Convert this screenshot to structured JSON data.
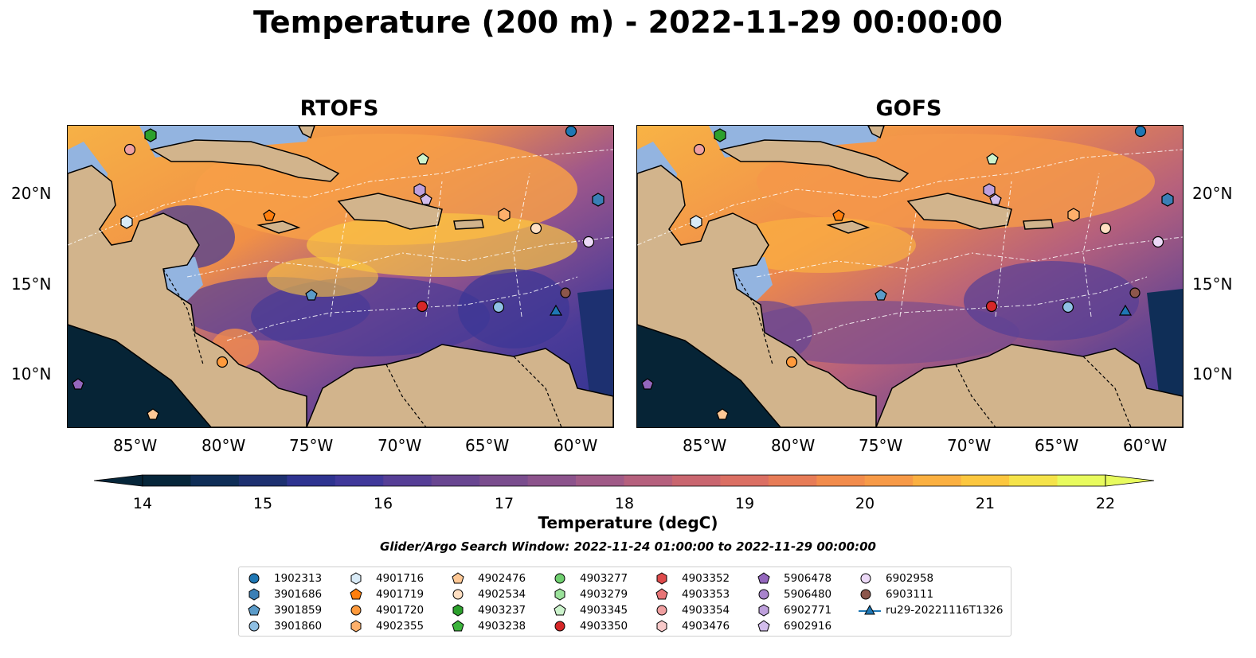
{
  "title": "Temperature (200 m) - 2022-11-29 00:00:00",
  "panels": [
    {
      "title": "RTOFS"
    },
    {
      "title": "GOFS"
    }
  ],
  "lat_labels": [
    "20°N",
    "15°N",
    "10°N"
  ],
  "lon_labels": [
    "85°W",
    "80°W",
    "75°W",
    "70°W",
    "65°W",
    "60°W"
  ],
  "colorbar": {
    "label": "Temperature (degC)",
    "ticks": [
      "14",
      "15",
      "16",
      "17",
      "18",
      "19",
      "20",
      "21",
      "22"
    ],
    "colors": [
      "#06263a",
      "#0f2e57",
      "#1d3070",
      "#2e3390",
      "#40389a",
      "#563e96",
      "#694691",
      "#7a4d8e",
      "#8c538c",
      "#a05a87",
      "#b5607d",
      "#c9666f",
      "#db6f63",
      "#e77c57",
      "#f28c4c",
      "#f79a47",
      "#fbb041",
      "#fcc73f",
      "#f5e34a",
      "#e8fb5e"
    ],
    "extend": "both"
  },
  "search_window": "Glider/Argo Search Window: 2022-11-24 01:00:00 to 2022-11-29 00:00:00",
  "legend": [
    {
      "label": "1902313",
      "marker": "circle",
      "color": "#1f77b4"
    },
    {
      "label": "3901686",
      "marker": "hexagon",
      "color": "#3a7fb6"
    },
    {
      "label": "3901859",
      "marker": "pentagon",
      "color": "#5b9bc9"
    },
    {
      "label": "3901860",
      "marker": "circle",
      "color": "#8fc0e4"
    },
    {
      "label": "4901716",
      "marker": "hexagon",
      "color": "#d9ebf7"
    },
    {
      "label": "4901719",
      "marker": "pentagon",
      "color": "#ff7f0e"
    },
    {
      "label": "4901720",
      "marker": "circle",
      "color": "#ff9a3c"
    },
    {
      "label": "4902355",
      "marker": "hexagon",
      "color": "#ffb06b"
    },
    {
      "label": "4902476",
      "marker": "pentagon",
      "color": "#ffc895"
    },
    {
      "label": "4902534",
      "marker": "circle",
      "color": "#ffdfc2"
    },
    {
      "label": "4903237",
      "marker": "hexagon",
      "color": "#2ca02c"
    },
    {
      "label": "4903238",
      "marker": "pentagon",
      "color": "#3cb43c"
    },
    {
      "label": "4903277",
      "marker": "circle",
      "color": "#6fcf6f"
    },
    {
      "label": "4903279",
      "marker": "hexagon",
      "color": "#9be29b"
    },
    {
      "label": "4903345",
      "marker": "pentagon",
      "color": "#ccf3cc"
    },
    {
      "label": "4903350",
      "marker": "circle",
      "color": "#d62728"
    },
    {
      "label": "4903352",
      "marker": "hexagon",
      "color": "#de4a4b"
    },
    {
      "label": "4903353",
      "marker": "pentagon",
      "color": "#e87577"
    },
    {
      "label": "4903354",
      "marker": "circle",
      "color": "#f0a0a1"
    },
    {
      "label": "4903476",
      "marker": "hexagon",
      "color": "#f7c9c9"
    },
    {
      "label": "5906478",
      "marker": "pentagon",
      "color": "#9467bd"
    },
    {
      "label": "5906480",
      "marker": "circle",
      "color": "#a883cc"
    },
    {
      "label": "6902771",
      "marker": "hexagon",
      "color": "#bea0dc"
    },
    {
      "label": "6902916",
      "marker": "pentagon",
      "color": "#d3bdeb"
    },
    {
      "label": "6902958",
      "marker": "circle",
      "color": "#ecd9f7"
    },
    {
      "label": "6903111",
      "marker": "circle",
      "color": "#8c564b"
    },
    {
      "label": "ru29-20221116T1326",
      "marker": "triangle-line",
      "color": "#1f77b4"
    }
  ],
  "colors": {
    "land": "#d2b48c",
    "shelf": "#93b4e0",
    "deep_ocean": "#062436"
  }
}
